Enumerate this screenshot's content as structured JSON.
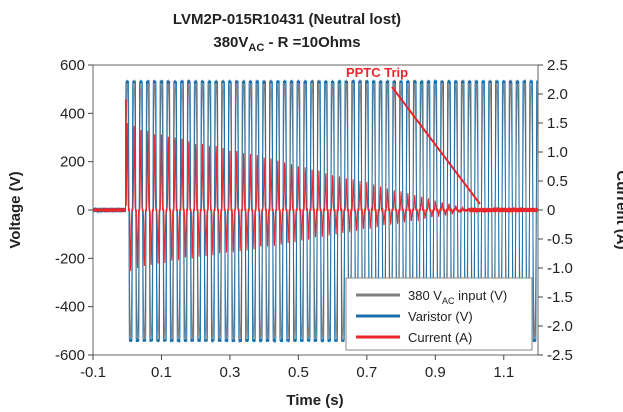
{
  "chart_data": {
    "type": "line",
    "title": "LVM2P-015R10431 (Neutral lost)",
    "subtitle": {
      "main": "380V",
      "sub": "AC",
      "rest": " - R =10Ohms"
    },
    "xlabel": "Time (s)",
    "ylabel": "Voltage (V)",
    "y2label": "Current (A)",
    "xlim": [
      -0.1,
      1.2
    ],
    "ylim": [
      -600,
      600
    ],
    "y2lim": [
      -2.5,
      2.5
    ],
    "xticks": [
      "-0.1",
      "0.1",
      "0.3",
      "0.5",
      "0.7",
      "0.9",
      "1.1"
    ],
    "yticks": [
      "-600",
      "-400",
      "-200",
      "0",
      "200",
      "400",
      "600"
    ],
    "y2ticks": [
      "-2.5",
      "-2.0",
      "-1.5",
      "-1.0",
      "-0.5",
      "0",
      "0.5",
      "1.0",
      "1.5",
      "2.0",
      "2.5"
    ],
    "grid": false,
    "legend_position": "bottom-right",
    "annotation": {
      "text": "PPTC Trip",
      "x": 1.0,
      "y": 0.0
    },
    "series": [
      {
        "name": "380 V",
        "name_sub": "AC",
        "name_rest": " input (V)",
        "color": "#7f7f7f",
        "amplitude_v": 537,
        "frequency_hz": 50,
        "start_s": -0.005
      },
      {
        "name": "Varistor (V)",
        "color": "#1b6fa8",
        "pre_fault_v": [
          -10,
          10
        ],
        "fault_s": -0.005,
        "peak_positive_v": 530,
        "peak_negative_v": -540,
        "frequency_hz": 50
      },
      {
        "name": "Current (A)",
        "color": "#e8262b",
        "spike_a": 1.9,
        "spike_s": -0.005,
        "envelope": {
          "t": [
            0,
            0.05,
            0.2,
            0.4,
            0.6,
            0.8,
            1.0
          ],
          "peak_a": [
            1.5,
            1.35,
            1.15,
            0.9,
            0.6,
            0.3,
            0.0
          ]
        },
        "trip_s": 1.0
      }
    ]
  }
}
